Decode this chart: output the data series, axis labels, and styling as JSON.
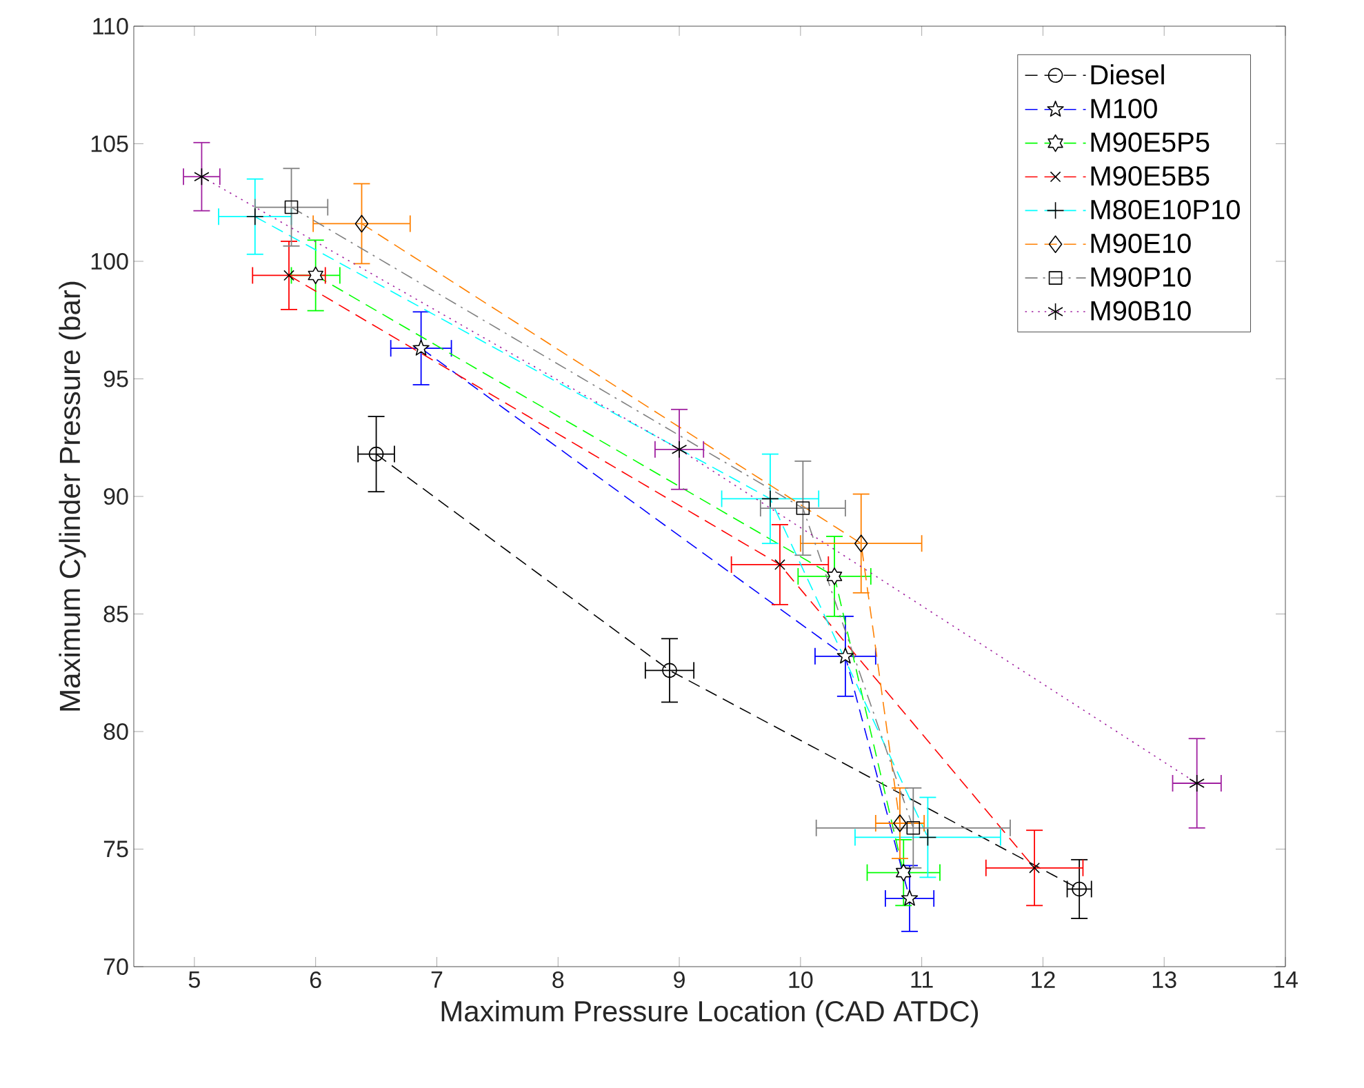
{
  "chart_data": {
    "type": "line",
    "xlabel": "Maximum Pressure Location (CAD ATDC)",
    "ylabel": "Maximum Cylinder Pressure (bar)",
    "xlim": [
      4.5,
      14
    ],
    "ylim": [
      70,
      110
    ],
    "xticks": [
      5,
      6,
      7,
      8,
      9,
      10,
      11,
      12,
      13,
      14
    ],
    "yticks": [
      70,
      75,
      80,
      85,
      90,
      95,
      100,
      105,
      110
    ],
    "grid": false,
    "legend": "top right",
    "series": [
      {
        "name": "Diesel",
        "color": "#000000",
        "marker": "circle",
        "line_style": "dashed",
        "x": [
          6.5,
          8.92,
          12.3
        ],
        "values": [
          91.8,
          82.6,
          73.3
        ],
        "errors": [
          1.6,
          1.35,
          1.25
        ],
        "xerrors": [
          0.15,
          0.2,
          0.1
        ]
      },
      {
        "name": "M100",
        "color": "#0000ff",
        "marker": "star",
        "line_style": "dashed",
        "x": [
          6.87,
          10.37,
          10.9
        ],
        "values": [
          96.3,
          83.2,
          72.9
        ],
        "errors": [
          1.55,
          1.7,
          1.4
        ],
        "xerrors": [
          0.25,
          0.25,
          0.2
        ]
      },
      {
        "name": "M90E5P5",
        "color": "#00ff00",
        "marker": "star",
        "line_style": "dashed",
        "x": [
          6.0,
          10.28,
          10.85
        ],
        "values": [
          99.4,
          86.6,
          74.0
        ],
        "errors": [
          1.5,
          1.7,
          1.4
        ],
        "xerrors": [
          0.2,
          0.3,
          0.3
        ]
      },
      {
        "name": "M90E5B5",
        "color": "#ff0000",
        "marker": "cross",
        "line_style": "dashed",
        "x": [
          5.78,
          9.83,
          11.93
        ],
        "values": [
          99.4,
          87.1,
          74.2
        ],
        "errors": [
          1.45,
          1.7,
          1.6
        ],
        "xerrors": [
          0.3,
          0.4,
          0.4
        ]
      },
      {
        "name": "M80E10P10",
        "color": "#00ffff",
        "marker": "cross",
        "line_style": "dashed",
        "x": [
          5.5,
          9.75,
          11.05
        ],
        "values": [
          101.9,
          89.9,
          75.5
        ],
        "errors": [
          1.6,
          1.9,
          1.7
        ],
        "xerrors": [
          0.3,
          0.4,
          0.6
        ]
      },
      {
        "name": "M90E10",
        "color": "#ff8000",
        "marker": "diamond",
        "line_style": "dashed",
        "x": [
          6.38,
          10.5,
          10.82
        ],
        "values": [
          101.6,
          88.0,
          76.1
        ],
        "errors": [
          1.7,
          2.1,
          1.5
        ],
        "xerrors": [
          0.4,
          0.5,
          0.2
        ]
      },
      {
        "name": "M90P10",
        "color": "#808080",
        "marker": "square",
        "line_style": "dashdot",
        "x": [
          5.8,
          10.02,
          10.93
        ],
        "values": [
          102.3,
          89.5,
          75.9
        ],
        "errors": [
          1.65,
          2.0,
          1.7
        ],
        "xerrors": [
          0.3,
          0.35,
          0.8
        ]
      },
      {
        "name": "M90B10",
        "color": "#a020a0",
        "marker": "cross",
        "line_style": "dotted",
        "x": [
          5.06,
          9.0,
          13.27
        ],
        "values": [
          103.6,
          92.0,
          77.8
        ],
        "errors": [
          1.45,
          1.7,
          1.9
        ],
        "xerrors": [
          0.15,
          0.2,
          0.2
        ]
      }
    ]
  }
}
